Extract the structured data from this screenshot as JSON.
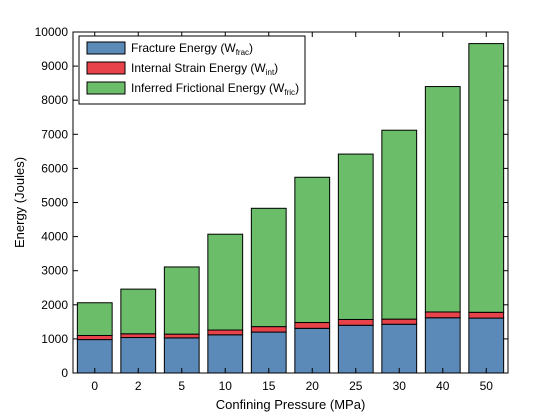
{
  "chart_data": {
    "type": "bar",
    "stacked": true,
    "xlabel": "Confining Pressure (MPa)",
    "ylabel": "Energy (Joules)",
    "ylim": [
      0,
      10000
    ],
    "yticks": [
      0,
      1000,
      2000,
      3000,
      4000,
      5000,
      6000,
      7000,
      8000,
      9000,
      10000
    ],
    "categories": [
      "0",
      "2",
      "5",
      "10",
      "15",
      "20",
      "25",
      "30",
      "40",
      "50"
    ],
    "grid": false,
    "legend_position": "top-left",
    "series": [
      {
        "name": "Fracture Energy (W_frac)",
        "label_main": "Fracture Energy (W",
        "label_sub": "frac",
        "label_end": ")",
        "color": "#5b89b8",
        "values": [
          980,
          1040,
          1030,
          1120,
          1200,
          1310,
          1400,
          1430,
          1620,
          1610
        ]
      },
      {
        "name": "Internal Strain Energy (W_int)",
        "label_main": "Internal Strain Energy (W",
        "label_sub": "int",
        "label_end": ")",
        "color": "#e8434a",
        "values": [
          120,
          110,
          110,
          140,
          160,
          170,
          170,
          150,
          170,
          170
        ]
      },
      {
        "name": "Inferred Frictional Energy (W_fric)",
        "label_main": "Inferred Frictional Energy (W",
        "label_sub": "fric",
        "label_end": ")",
        "color": "#6cbd6a",
        "values": [
          960,
          1310,
          1970,
          2810,
          3470,
          4260,
          4850,
          5540,
          6610,
          7880
        ]
      }
    ]
  }
}
